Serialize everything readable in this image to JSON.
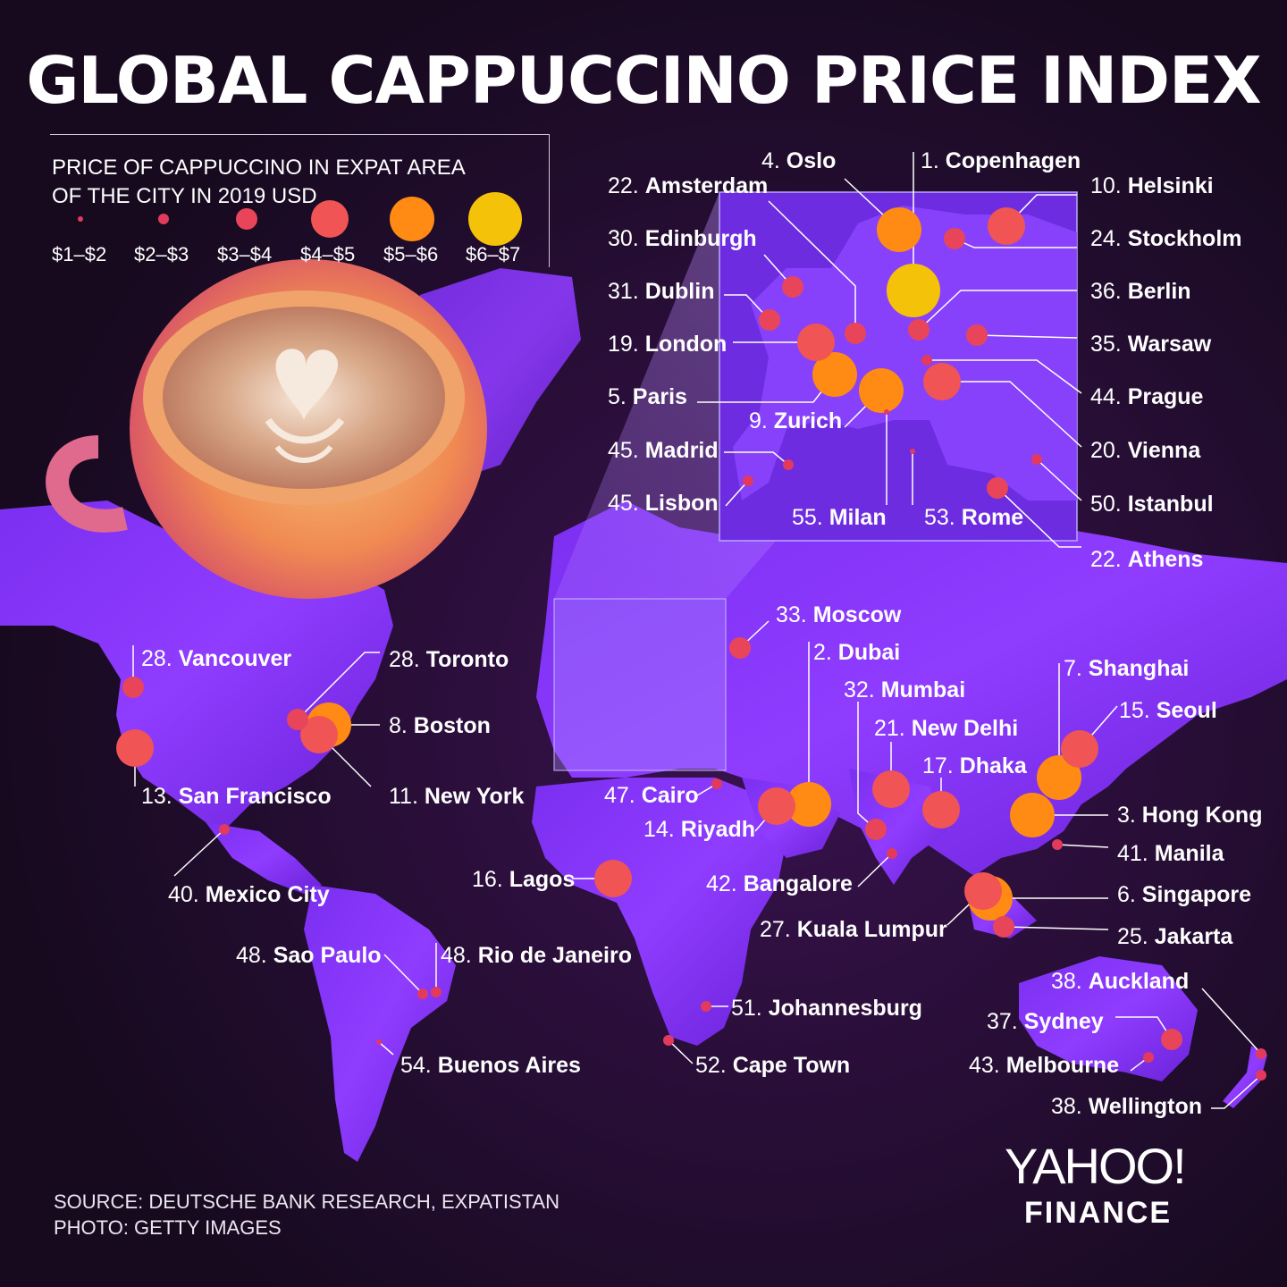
{
  "title": "GLOBAL CAPPUCCINO PRICE INDEX",
  "legend": {
    "title_lines": [
      "PRICE OF CAPPUCCINO IN EXPAT AREA",
      "OF THE CITY IN 2019 USD"
    ],
    "bins": [
      {
        "label": "$1–$2",
        "color": "#e23a5c"
      },
      {
        "label": "$2–$3",
        "color": "#e23a5c"
      },
      {
        "label": "$3–$4",
        "color": "#e8455a"
      },
      {
        "label": "$4–$5",
        "color": "#f05454"
      },
      {
        "label": "$5–$6",
        "color": "#ff8a14"
      },
      {
        "label": "$6–$7",
        "color": "#f5c20a"
      }
    ]
  },
  "cities": [
    {
      "rank": "1.",
      "name": "Copenhagen",
      "tier": 5
    },
    {
      "rank": "2.",
      "name": "Dubai",
      "tier": 4
    },
    {
      "rank": "3.",
      "name": "Hong Kong",
      "tier": 4
    },
    {
      "rank": "4.",
      "name": "Oslo",
      "tier": 4
    },
    {
      "rank": "5.",
      "name": "Paris",
      "tier": 4
    },
    {
      "rank": "6.",
      "name": "Singapore",
      "tier": 4
    },
    {
      "rank": "7.",
      "name": "Shanghai",
      "tier": 4
    },
    {
      "rank": "8.",
      "name": "Boston",
      "tier": 4
    },
    {
      "rank": "9.",
      "name": "Zurich",
      "tier": 4
    },
    {
      "rank": "10.",
      "name": "Helsinki",
      "tier": 3
    },
    {
      "rank": "11.",
      "name": "New York",
      "tier": 3
    },
    {
      "rank": "13.",
      "name": "San Francisco",
      "tier": 3
    },
    {
      "rank": "14.",
      "name": "Riyadh",
      "tier": 3
    },
    {
      "rank": "15.",
      "name": "Seoul",
      "tier": 3
    },
    {
      "rank": "16.",
      "name": "Lagos",
      "tier": 3
    },
    {
      "rank": "17.",
      "name": "Dhaka",
      "tier": 3
    },
    {
      "rank": "19.",
      "name": "London",
      "tier": 3
    },
    {
      "rank": "20.",
      "name": "Vienna",
      "tier": 3
    },
    {
      "rank": "21.",
      "name": "New Delhi",
      "tier": 3
    },
    {
      "rank": "22.",
      "name": "Amsterdam",
      "tier": 2
    },
    {
      "rank": "22.",
      "name": "Athens",
      "tier": 2
    },
    {
      "rank": "24.",
      "name": "Stockholm",
      "tier": 2
    },
    {
      "rank": "25.",
      "name": "Jakarta",
      "tier": 2
    },
    {
      "rank": "27.",
      "name": "Kuala Lumpur",
      "tier": 3
    },
    {
      "rank": "28.",
      "name": "Vancouver",
      "tier": 2
    },
    {
      "rank": "28.",
      "name": "Toronto",
      "tier": 2
    },
    {
      "rank": "30.",
      "name": "Edinburgh",
      "tier": 2
    },
    {
      "rank": "31.",
      "name": "Dublin",
      "tier": 2
    },
    {
      "rank": "32.",
      "name": "Mumbai",
      "tier": 2
    },
    {
      "rank": "33.",
      "name": "Moscow",
      "tier": 2
    },
    {
      "rank": "35.",
      "name": "Warsaw",
      "tier": 2
    },
    {
      "rank": "36.",
      "name": "Berlin",
      "tier": 2
    },
    {
      "rank": "37.",
      "name": "Sydney",
      "tier": 2
    },
    {
      "rank": "38.",
      "name": "Auckland",
      "tier": 1
    },
    {
      "rank": "38.",
      "name": "Wellington",
      "tier": 1
    },
    {
      "rank": "40.",
      "name": "Mexico City",
      "tier": 1
    },
    {
      "rank": "41.",
      "name": "Manila",
      "tier": 1
    },
    {
      "rank": "42.",
      "name": "Bangalore",
      "tier": 1
    },
    {
      "rank": "43.",
      "name": "Melbourne",
      "tier": 1
    },
    {
      "rank": "44.",
      "name": "Prague",
      "tier": 1
    },
    {
      "rank": "45.",
      "name": "Madrid",
      "tier": 1
    },
    {
      "rank": "45.",
      "name": "Lisbon",
      "tier": 1
    },
    {
      "rank": "47.",
      "name": "Cairo",
      "tier": 1
    },
    {
      "rank": "48.",
      "name": "Sao Paulo",
      "tier": 1
    },
    {
      "rank": "48.",
      "name": "Rio de Janeiro",
      "tier": 1
    },
    {
      "rank": "50.",
      "name": "Istanbul",
      "tier": 1
    },
    {
      "rank": "51.",
      "name": "Johannesburg",
      "tier": 1
    },
    {
      "rank": "52.",
      "name": "Cape Town",
      "tier": 1
    },
    {
      "rank": "53.",
      "name": "Rome",
      "tier": 0
    },
    {
      "rank": "54.",
      "name": "Buenos Aires",
      "tier": 0
    },
    {
      "rank": "55.",
      "name": "Milan",
      "tier": 0
    }
  ],
  "footer": {
    "source": "SOURCE: DEUTSCHE BANK RESEARCH, EXPATISTAN",
    "photo": "PHOTO: GETTY IMAGES"
  },
  "brand": {
    "line1": "YAHOO!",
    "line2": "FINANCE"
  }
}
